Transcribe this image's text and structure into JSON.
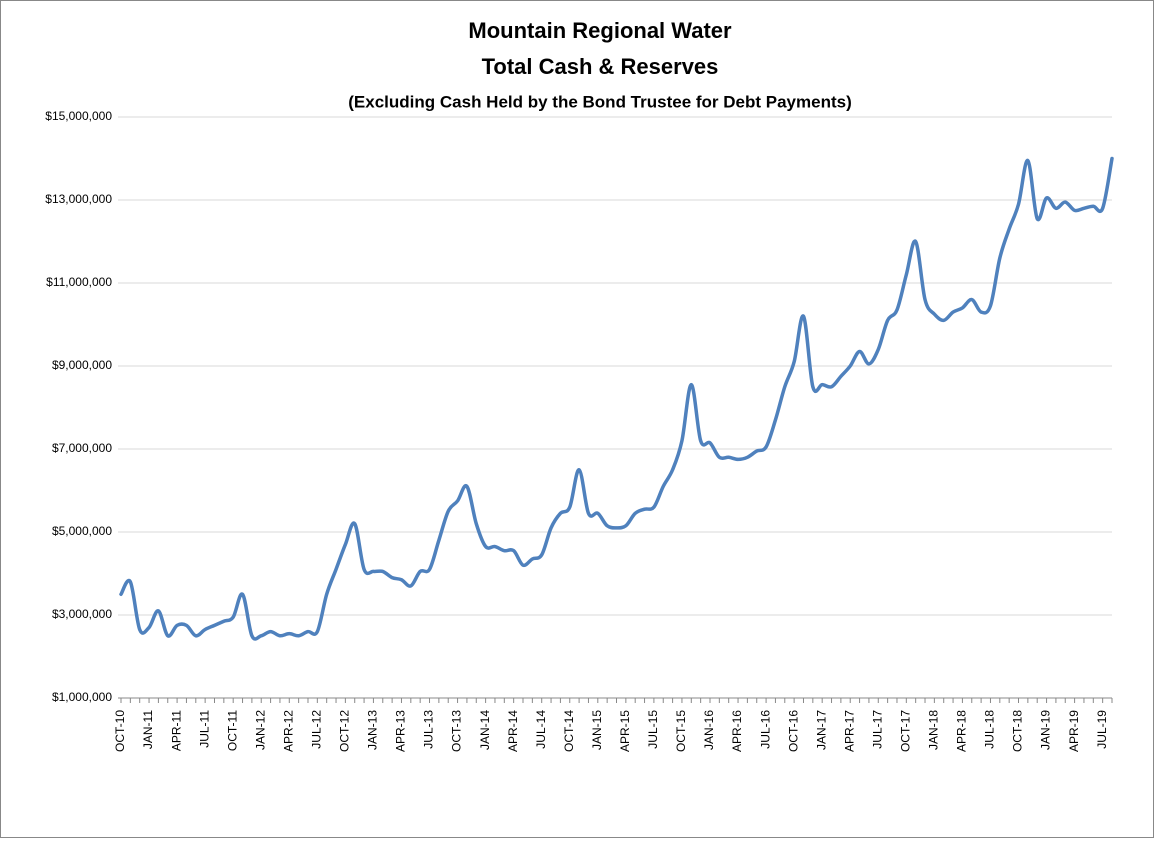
{
  "chart_data": {
    "type": "line",
    "title": "Mountain Regional Water",
    "subtitle": "Total Cash & Reserves",
    "note": "(Excluding Cash Held by the Bond Trustee for Debt Payments)",
    "categories": [
      "OCT-10",
      null,
      null,
      "JAN-11",
      null,
      null,
      "APR-11",
      null,
      null,
      "JUL-11",
      null,
      null,
      "OCT-11",
      null,
      null,
      "JAN-12",
      null,
      null,
      "APR-12",
      null,
      null,
      "JUL-12",
      null,
      null,
      "OCT-12",
      null,
      null,
      "JAN-13",
      null,
      null,
      "APR-13",
      null,
      null,
      "JUL-13",
      null,
      null,
      "OCT-13",
      null,
      null,
      "JAN-14",
      null,
      null,
      "APR-14",
      null,
      null,
      "JUL-14",
      null,
      null,
      "OCT-14",
      null,
      null,
      "JAN-15",
      null,
      null,
      "APR-15",
      null,
      null,
      "JUL-15",
      null,
      null,
      "OCT-15",
      null,
      null,
      "JAN-16",
      null,
      null,
      "APR-16",
      null,
      null,
      "JUL-16",
      null,
      null,
      "OCT-16",
      null,
      null,
      "JAN-17",
      null,
      null,
      "APR-17",
      null,
      null,
      "JUL-17",
      null,
      null,
      "OCT-17",
      null,
      null,
      "JAN-18",
      null,
      null,
      "APR-18",
      null,
      null,
      "JUL-18",
      null,
      null,
      "OCT-18",
      null,
      null,
      "JAN-19",
      null,
      null,
      "APR-19",
      null,
      null,
      "JUL-19",
      null
    ],
    "series": [
      {
        "name": "Total Cash & Reserves",
        "color": "#4f81bd",
        "values": [
          3500000,
          3800000,
          2650000,
          2700000,
          3100000,
          2500000,
          2750000,
          2750000,
          2500000,
          2650000,
          2750000,
          2850000,
          2950000,
          3500000,
          2500000,
          2500000,
          2600000,
          2500000,
          2550000,
          2500000,
          2600000,
          2600000,
          3500000,
          4100000,
          4700000,
          5200000,
          4100000,
          4050000,
          4050000,
          3900000,
          3850000,
          3700000,
          4050000,
          4100000,
          4800000,
          5500000,
          5750000,
          6100000,
          5200000,
          4650000,
          4650000,
          4550000,
          4550000,
          4200000,
          4350000,
          4450000,
          5100000,
          5450000,
          5600000,
          6500000,
          5450000,
          5450000,
          5150000,
          5100000,
          5150000,
          5450000,
          5550000,
          5600000,
          6100000,
          6500000,
          7200000,
          8550000,
          7200000,
          7150000,
          6800000,
          6800000,
          6750000,
          6800000,
          6950000,
          7050000,
          7700000,
          8500000,
          9100000,
          10200000,
          8500000,
          8550000,
          8500000,
          8750000,
          9000000,
          9350000,
          9050000,
          9400000,
          10100000,
          10350000,
          11200000,
          12000000,
          10600000,
          10250000,
          10100000,
          10300000,
          10400000,
          10600000,
          10300000,
          10450000,
          11600000,
          12300000,
          12900000,
          13950000,
          12550000,
          13050000,
          12800000,
          12950000,
          12750000,
          12800000,
          12850000,
          12800000,
          14000000
        ]
      }
    ],
    "ylim": [
      1000000,
      15000000
    ],
    "yticks": [
      {
        "value": 1000000,
        "label": "$1,000,000"
      },
      {
        "value": 3000000,
        "label": "$3,000,000"
      },
      {
        "value": 5000000,
        "label": "$5,000,000"
      },
      {
        "value": 7000000,
        "label": "$7,000,000"
      },
      {
        "value": 9000000,
        "label": "$9,000,000"
      },
      {
        "value": 11000000,
        "label": "$11,000,000"
      },
      {
        "value": 13000000,
        "label": "$13,000,000"
      },
      {
        "value": 15000000,
        "label": "$15,000,000"
      }
    ],
    "grid": true
  }
}
